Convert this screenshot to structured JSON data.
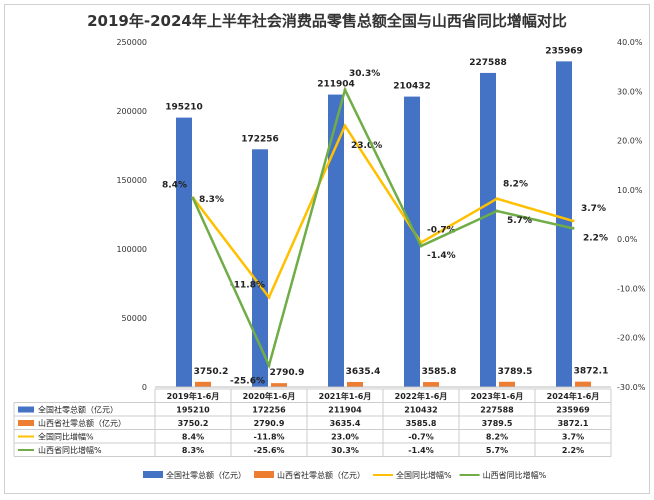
{
  "chart_data": {
    "type": "bar+line",
    "title": "2019年-2024年上半年社会消费品零售总额全国与山西省同比增幅对比",
    "categories": [
      "2019年1-6月",
      "2020年1-6月",
      "2021年1-6月",
      "2022年1-6月",
      "2023年1-6月",
      "2024年1-6月"
    ],
    "left_axis": {
      "min": 0,
      "max": 250000,
      "ticks": [
        "0",
        "50000",
        "100000",
        "150000",
        "200000",
        "250000"
      ]
    },
    "right_axis": {
      "min": -30,
      "max": 40,
      "ticks": [
        "-30.0%",
        "-20.0%",
        "-10.0%",
        "0.0%",
        "10.0%",
        "20.0%",
        "30.0%",
        "40.0%"
      ]
    },
    "series": [
      {
        "name": "全国社零总额（亿元）",
        "type": "bar",
        "axis": "left",
        "color": "#4472C4",
        "values": [
          195210,
          172256,
          211904,
          210432,
          227588,
          235969
        ],
        "labels": [
          "195210",
          "172256",
          "211904",
          "210432",
          "227588",
          "235969"
        ]
      },
      {
        "name": "山西省社零总额（亿元）",
        "type": "bar",
        "axis": "left",
        "color": "#ED7D31",
        "values": [
          3750.2,
          2790.9,
          3635.4,
          3585.8,
          3789.5,
          3872.1
        ],
        "labels": [
          "3750.2",
          "2790.9",
          "3635.4",
          "3585.8",
          "3789.5",
          "3872.1"
        ]
      },
      {
        "name": "全国同比增幅%",
        "type": "line",
        "axis": "right",
        "color": "#FFC000",
        "values": [
          8.4,
          -11.8,
          23.0,
          -0.7,
          8.2,
          3.7
        ],
        "labels": [
          "8.4%",
          "-11.8%",
          "23.0%",
          "-0.7%",
          "8.2%",
          "3.7%"
        ]
      },
      {
        "name": "山西省同比增幅%",
        "type": "line",
        "axis": "right",
        "color": "#70AD47",
        "values": [
          8.3,
          -25.6,
          30.3,
          -1.4,
          5.7,
          2.2
        ],
        "labels": [
          "8.3%",
          "-25.6%",
          "30.3%",
          "-1.4%",
          "5.7%",
          "2.2%"
        ]
      }
    ],
    "data_table": true,
    "legend": "bottom",
    "grid": false
  }
}
